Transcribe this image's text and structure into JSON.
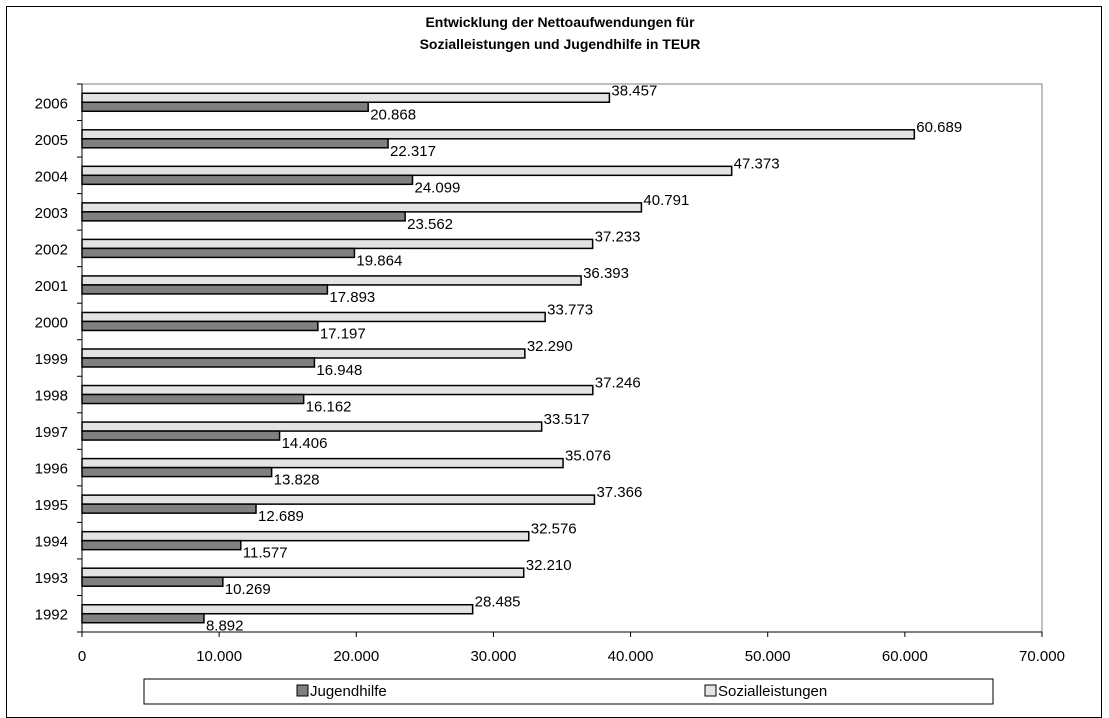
{
  "chart_data": {
    "type": "bar",
    "orientation": "horizontal",
    "title_lines": [
      "Entwicklung der Nettoaufwendungen für",
      "Sozialleistungen und Jugendhilfe in TEUR"
    ],
    "categories": [
      "1992",
      "1993",
      "1994",
      "1995",
      "1996",
      "1997",
      "1998",
      "1999",
      "2000",
      "2001",
      "2002",
      "2003",
      "2004",
      "2005",
      "2006"
    ],
    "series": [
      {
        "name": "Jugendhilfe",
        "color": "#808080",
        "values": [
          8892,
          10269,
          11577,
          12689,
          13828,
          14406,
          16162,
          16948,
          17197,
          17893,
          19864,
          23562,
          24099,
          22317,
          20868
        ],
        "labels": [
          "8.892",
          "10.269",
          "11.577",
          "12.689",
          "13.828",
          "14.406",
          "16.162",
          "16.948",
          "17.197",
          "17.893",
          "19.864",
          "23.562",
          "24.099",
          "22.317",
          "20.868"
        ]
      },
      {
        "name": "Sozialleistungen",
        "color": "#e3e3e3",
        "values": [
          28485,
          32210,
          32576,
          37366,
          35076,
          33517,
          37246,
          32290,
          33773,
          36393,
          37233,
          40791,
          47373,
          60689,
          38457
        ],
        "labels": [
          "28.485",
          "32.210",
          "32.576",
          "37.366",
          "35.076",
          "33.517",
          "37.246",
          "32.290",
          "33.773",
          "36.393",
          "37.233",
          "40.791",
          "47.373",
          "60.689",
          "38.457"
        ]
      }
    ],
    "xlim": [
      0,
      70000
    ],
    "xticks": [
      0,
      10000,
      20000,
      30000,
      40000,
      50000,
      60000,
      70000
    ],
    "xtick_labels": [
      "0",
      "10.000",
      "20.000",
      "30.000",
      "40.000",
      "50.000",
      "60.000",
      "70.000"
    ],
    "grid": false,
    "plot_background": "#ffffff",
    "legend_position": "bottom"
  }
}
